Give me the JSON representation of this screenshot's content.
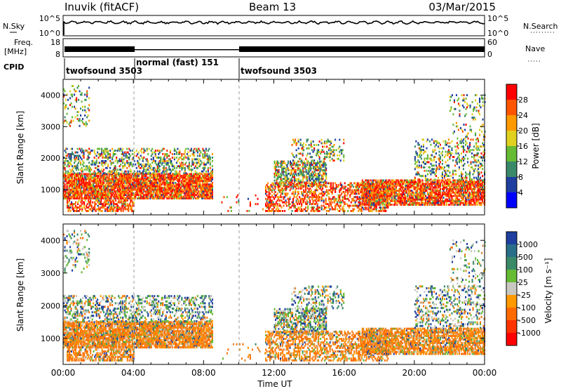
{
  "header": {
    "radar": "Inuvik (fitACF)",
    "beam": "Beam 13",
    "date": "03/Mar/2015"
  },
  "top_panels": {
    "nsky": {
      "label": "N.Sky",
      "ticks": [
        "10^5",
        "10^0"
      ]
    },
    "nsearch": {
      "label": "N.Search",
      "ticks": [
        "10^5",
        "10^0"
      ]
    },
    "freq": {
      "label_line1": "Freq.",
      "label_line2": "[MHz]",
      "ticks": [
        "18",
        "8"
      ]
    },
    "nave": {
      "label": "Nave",
      "ticks": [
        "60",
        "0"
      ]
    },
    "cpid": {
      "label": "CPID",
      "segments": [
        {
          "name": "twofsound 3503",
          "start_hour": 0
        },
        {
          "name": "normal (fast) 151",
          "start_hour": 4
        },
        {
          "name": "twofsound 3503",
          "start_hour": 10
        }
      ]
    }
  },
  "chart_data": [
    {
      "type": "heatmap",
      "title": "",
      "ylabel": "Slant Range [km]",
      "xlabel": "",
      "xlim_hours": [
        0,
        24
      ],
      "ylim_km": [
        200,
        4500
      ],
      "yticks": [
        1000,
        2000,
        3000,
        4000
      ],
      "colorbar": {
        "label": "Power [dB]",
        "ticks": [
          "4",
          "8",
          "12",
          "16",
          "20",
          "24",
          "28"
        ],
        "colors": [
          "#0000ff",
          "#1f3fa0",
          "#3a8a6a",
          "#66bb33",
          "#e0d020",
          "#ff9900",
          "#ff5500",
          "#ff0000"
        ]
      }
    },
    {
      "type": "heatmap",
      "title": "",
      "ylabel": "Slant Range [km]",
      "xlabel": "Time UT",
      "xlim_hours": [
        0,
        24
      ],
      "ylim_km": [
        200,
        4500
      ],
      "yticks": [
        1000,
        2000,
        3000,
        4000
      ],
      "xticks": [
        "00:00",
        "04:00",
        "08:00",
        "12:00",
        "16:00",
        "20:00",
        "00:00"
      ],
      "colorbar": {
        "label": "Velocity [m s⁻¹]",
        "ticks": [
          "1000",
          "500",
          "100",
          "25",
          "-25",
          "-100",
          "-500",
          "-1000"
        ],
        "colors": [
          "#1f3fa0",
          "#2a6e8a",
          "#3a8a6a",
          "#66bb33",
          "#c8c8c0",
          "#ff9900",
          "#ff6a00",
          "#ff3300",
          "#ff0000"
        ]
      }
    }
  ]
}
